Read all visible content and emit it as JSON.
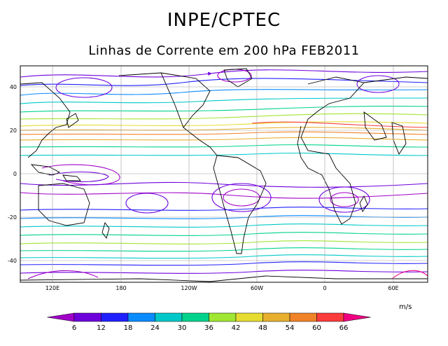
{
  "header": {
    "title": "INPE/CPTEC",
    "subtitle": "Linhas de Corrente em 200 hPa FEB2011"
  },
  "map": {
    "lat_labels": [
      "40",
      "20",
      "0",
      "-20",
      "-40"
    ],
    "lon_labels": [
      "120E",
      "180",
      "120W",
      "60W",
      "0",
      "60E"
    ],
    "land_color": "#ffffff",
    "coast_color": "#000000"
  },
  "colorbar": {
    "units": "m/s",
    "ticks": [
      "6",
      "12",
      "18",
      "24",
      "30",
      "36",
      "42",
      "48",
      "54",
      "60",
      "66"
    ],
    "colors": [
      "#a000c8",
      "#6e00dc",
      "#2020ff",
      "#0a8cff",
      "#00c8c8",
      "#00d28c",
      "#a0e632",
      "#e6dc32",
      "#e6af2d",
      "#f08228",
      "#fa3c3c",
      "#f00082"
    ]
  }
}
